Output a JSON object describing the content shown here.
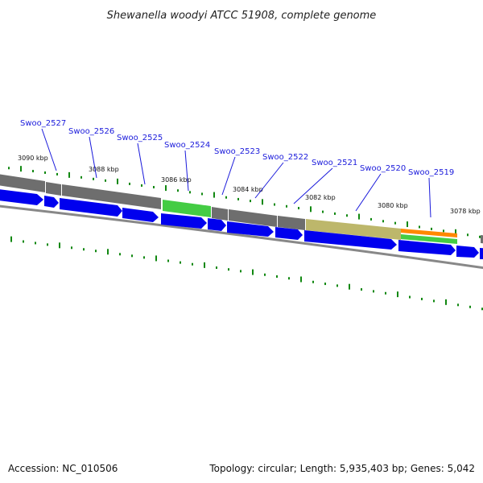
{
  "title": "Shewanella woodyi ATCC 51908, complete genome",
  "footer": {
    "accession": "Accession: NC_010506",
    "topology": "Topology: circular; Length: 5,935,403 bp; Genes: 5,042"
  },
  "colors": {
    "cds_blue": "#0000ee",
    "feature_gray": "#6e6e6e",
    "feature_green": "#44cc44",
    "feature_khaki": "#bdb76b",
    "feature_orange": "#ff8800",
    "tick_green": "#118811",
    "backbone": "#888888",
    "label_blue": "#1a1adb"
  },
  "kbp_ticks": [
    {
      "label": "3090 kbp"
    },
    {
      "label": "3088 kbp"
    },
    {
      "label": "3086 kbp"
    },
    {
      "label": "3084 kbp"
    },
    {
      "label": "3082 kbp"
    },
    {
      "label": "3080 kbp"
    },
    {
      "label": "3078 kbp"
    }
  ],
  "genes": [
    {
      "label": "Swoo_2527"
    },
    {
      "label": "Swoo_2526"
    },
    {
      "label": "Swoo_2525"
    },
    {
      "label": "Swoo_2524"
    },
    {
      "label": "Swoo_2523"
    },
    {
      "label": "Swoo_2522"
    },
    {
      "label": "Swoo_2521"
    },
    {
      "label": "Swoo_2520"
    },
    {
      "label": "Swoo_2519"
    }
  ]
}
